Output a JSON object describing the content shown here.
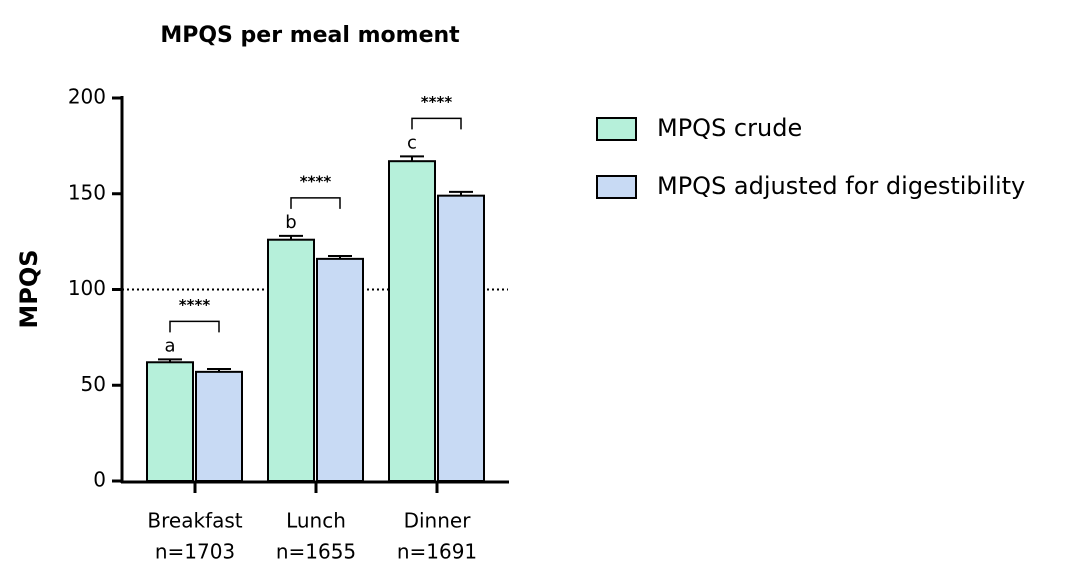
{
  "chart_data": {
    "type": "bar",
    "title": "MPQS per meal moment",
    "y_label": "MPQS",
    "categories": [
      "Breakfast",
      "Lunch",
      "Dinner"
    ],
    "category_notes": [
      "n=1703",
      "n=1655",
      "n=1691"
    ],
    "series": [
      {
        "name": "MPQS crude",
        "color": "#b6f0da",
        "values": [
          62,
          126,
          167
        ],
        "errors": [
          1.5,
          2,
          2.5
        ]
      },
      {
        "name": "MPQS adjusted for digestibility",
        "color": "#c8daf4",
        "values": [
          57,
          116,
          149
        ],
        "errors": [
          1.5,
          1.5,
          2
        ]
      }
    ],
    "group_letters": [
      "a",
      "b",
      "c"
    ],
    "significance": [
      "****",
      "****",
      "****"
    ],
    "reference_line": 100,
    "ylim": [
      0,
      200
    ],
    "yticks": [
      0,
      50,
      100,
      150,
      200
    ]
  }
}
